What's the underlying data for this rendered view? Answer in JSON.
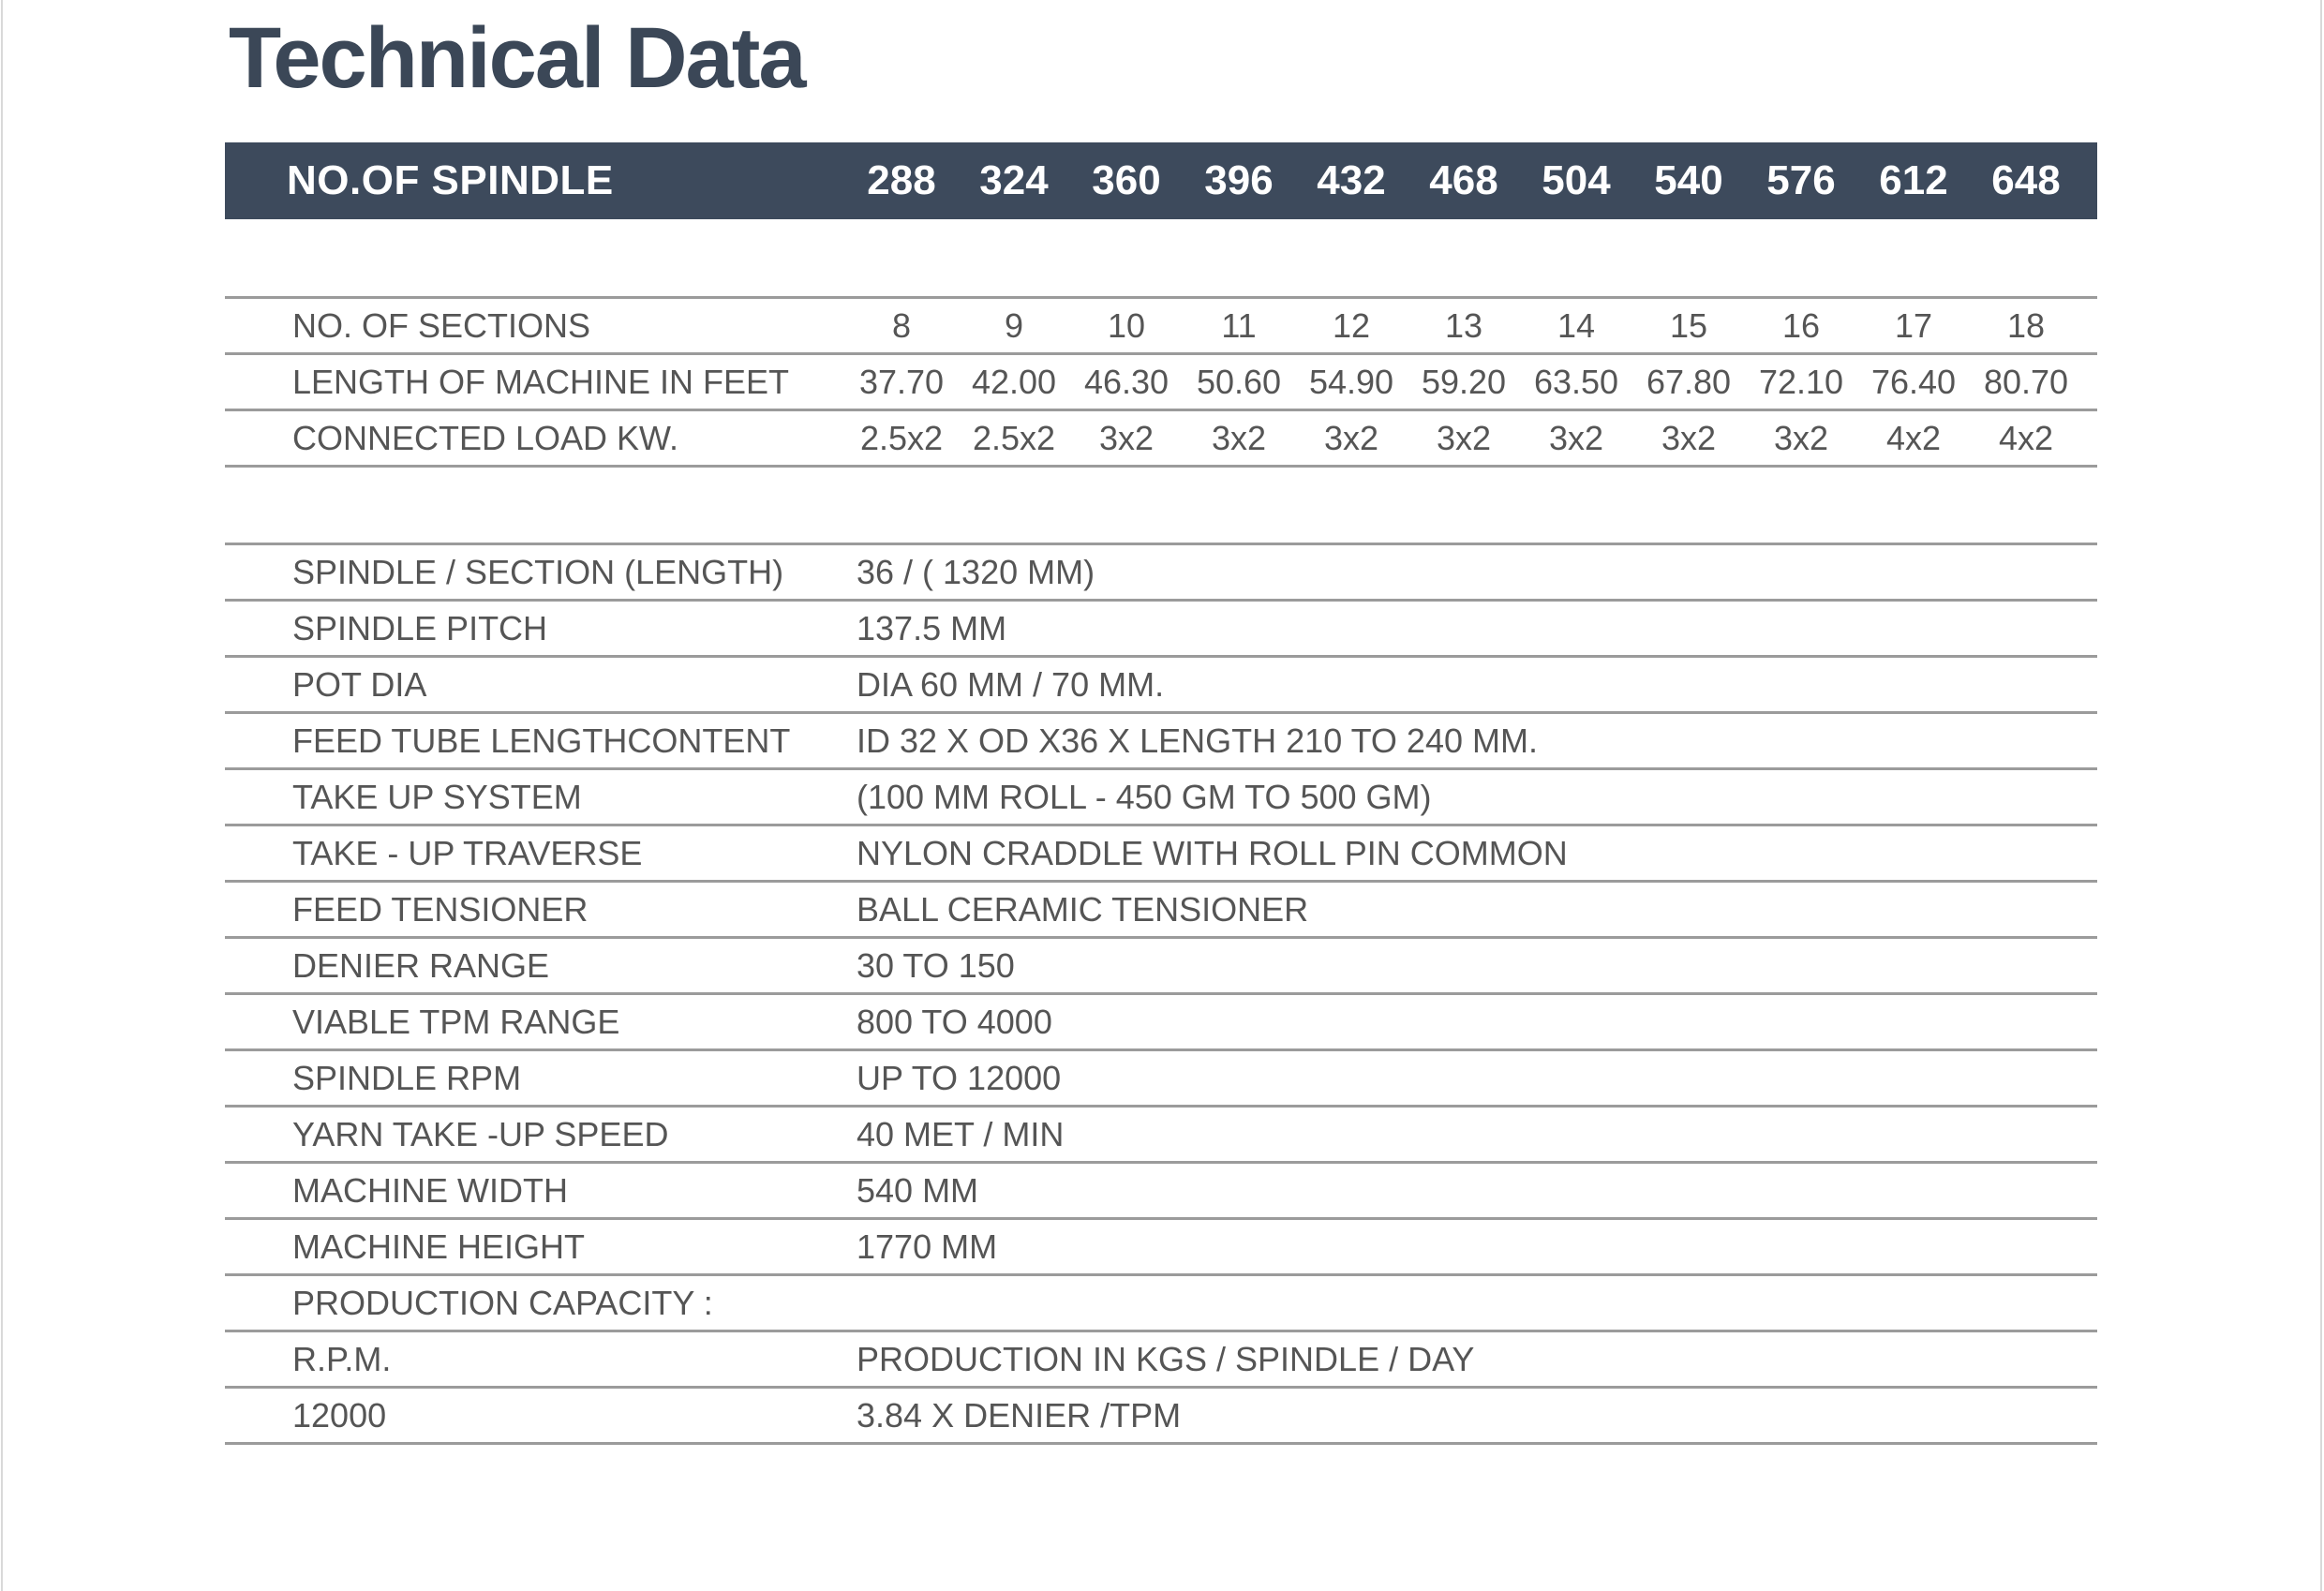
{
  "page": {
    "title": "Technical Data",
    "colors": {
      "header_bar": "#3d4a5c",
      "title_text": "#3b4757",
      "body_text": "#555555",
      "rule_line": "#9b9b9b",
      "bar_text": "#ffffff",
      "background": "#ffffff"
    }
  },
  "spindle_table": {
    "header_label": "NO.OF SPINDLE",
    "spindle_counts": [
      "288",
      "324",
      "360",
      "396",
      "432",
      "468",
      "504",
      "540",
      "576",
      "612",
      "648"
    ],
    "rows": [
      {
        "label": "NO. OF SECTIONS",
        "values": [
          "8",
          "9",
          "10",
          "11",
          "12",
          "13",
          "14",
          "15",
          "16",
          "17",
          "18"
        ]
      },
      {
        "label": "LENGTH OF MACHINE IN FEET",
        "values": [
          "37.70",
          "42.00",
          "46.30",
          "50.60",
          "54.90",
          "59.20",
          "63.50",
          "67.80",
          "72.10",
          "76.40",
          "80.70"
        ]
      },
      {
        "label": "CONNECTED LOAD KW.",
        "values": [
          "2.5x2",
          "2.5x2",
          "3x2",
          "3x2",
          "3x2",
          "3x2",
          "3x2",
          "3x2",
          "3x2",
          "4x2",
          "4x2"
        ]
      }
    ]
  },
  "specs": [
    {
      "label": "SPINDLE / SECTION (LENGTH)",
      "value": "36 / ( 1320 MM)"
    },
    {
      "label": "SPINDLE PITCH",
      "value": "137.5 MM"
    },
    {
      "label": "POT DIA",
      "value": "DIA 60 MM / 70 MM."
    },
    {
      "label": "FEED TUBE LENGTHCONTENT",
      "value": "ID 32 X OD X36 X LENGTH 210 TO 240 MM."
    },
    {
      "label": "TAKE UP SYSTEM",
      "value": "(100 MM ROLL - 450 GM TO 500 GM)"
    },
    {
      "label": "TAKE - UP TRAVERSE",
      "value": "NYLON CRADDLE WITH ROLL PIN COMMON"
    },
    {
      "label": "FEED TENSIONER",
      "value": "BALL CERAMIC TENSIONER"
    },
    {
      "label": "DENIER RANGE",
      "value": "30 TO 150"
    },
    {
      "label": "VIABLE TPM RANGE",
      "value": "800 TO 4000"
    },
    {
      "label": "SPINDLE RPM",
      "value": "UP TO 12000"
    },
    {
      "label": "YARN TAKE -UP SPEED",
      "value": "40 MET / MIN"
    },
    {
      "label": "MACHINE WIDTH",
      "value": "540 MM"
    },
    {
      "label": "MACHINE HEIGHT",
      "value": "1770 MM"
    },
    {
      "label": "PRODUCTION CAPACITY :",
      "value": ""
    },
    {
      "label": "R.P.M.",
      "value": "PRODUCTION IN KGS / SPINDLE / DAY"
    },
    {
      "label": "12000",
      "value": "3.84 X DENIER /TPM"
    }
  ]
}
